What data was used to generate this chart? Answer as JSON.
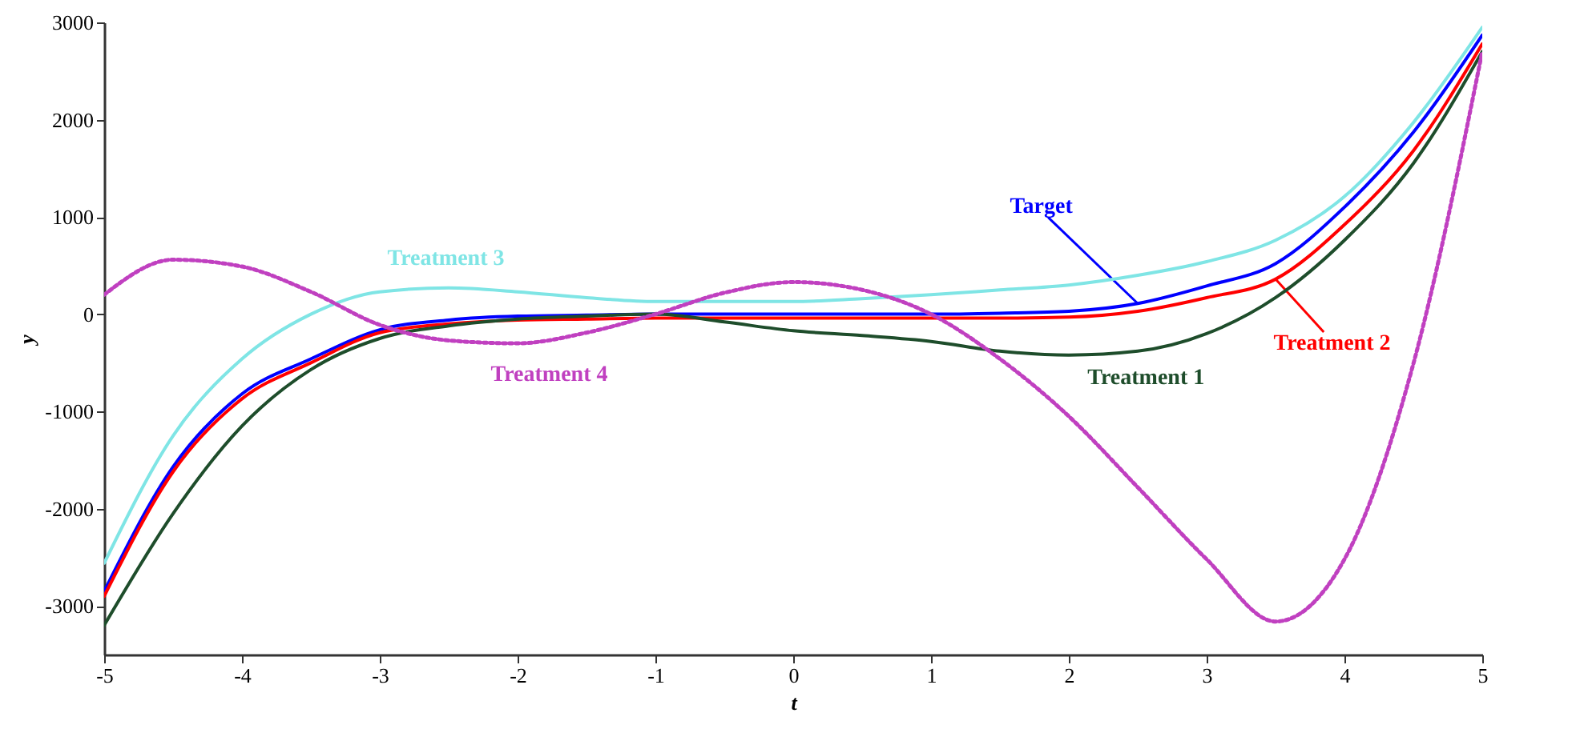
{
  "chart_data": {
    "type": "line",
    "xlabel": "t",
    "ylabel": "y",
    "x": [
      -5,
      -4.5,
      -4,
      -3.5,
      -3,
      -2.5,
      -2,
      -1.5,
      -1,
      -0.5,
      0,
      0.5,
      1,
      1.5,
      2,
      2.5,
      3,
      3.5,
      4,
      4.5,
      5
    ],
    "series": [
      {
        "name": "Target",
        "color": "#0000ff",
        "line_style": "solid",
        "values": [
          -2850,
          -1570,
          -820,
          -460,
          -160,
          -60,
          -20,
          -10,
          0,
          0,
          0,
          0,
          0,
          10,
          30,
          110,
          290,
          520,
          1100,
          1870,
          2870
        ]
      },
      {
        "name": "Treatment 2",
        "color": "#ff0000",
        "line_style": "solid",
        "values": [
          -2900,
          -1620,
          -870,
          -500,
          -190,
          -100,
          -60,
          -50,
          -40,
          -40,
          -40,
          -40,
          -40,
          -40,
          -30,
          30,
          170,
          360,
          920,
          1680,
          2780
        ]
      },
      {
        "name": "Treatment 1",
        "color": "#1e4d2b",
        "line_style": "solid",
        "values": [
          -3200,
          -2050,
          -1150,
          -570,
          -250,
          -120,
          -50,
          -20,
          0,
          -80,
          -170,
          -220,
          -280,
          -380,
          -420,
          -380,
          -200,
          170,
          760,
          1550,
          2700
        ]
      },
      {
        "name": "Treatment 3",
        "color": "#7fe5e5",
        "line_style": "solid",
        "values": [
          -2560,
          -1250,
          -460,
          0,
          230,
          270,
          230,
          170,
          130,
          130,
          130,
          160,
          200,
          250,
          300,
          400,
          540,
          760,
          1210,
          1970,
          2950
        ]
      },
      {
        "name": "Treatment 4",
        "color": "#c040c0",
        "line_style": "dotted",
        "values": [
          200,
          560,
          490,
          230,
          -110,
          -270,
          -300,
          -190,
          0,
          220,
          330,
          250,
          0,
          -460,
          -1050,
          -1780,
          -2520,
          -3160,
          -2520,
          -510,
          2700
        ]
      }
    ],
    "xlim": [
      -5,
      5
    ],
    "ylim": [
      -3500,
      3000
    ],
    "xticks": [
      -5,
      -4,
      -3,
      -2,
      -1,
      0,
      1,
      2,
      3,
      4,
      5
    ],
    "yticks": [
      -3000,
      -2000,
      -1000,
      0,
      1000,
      2000,
      3000
    ],
    "grid": false
  }
}
